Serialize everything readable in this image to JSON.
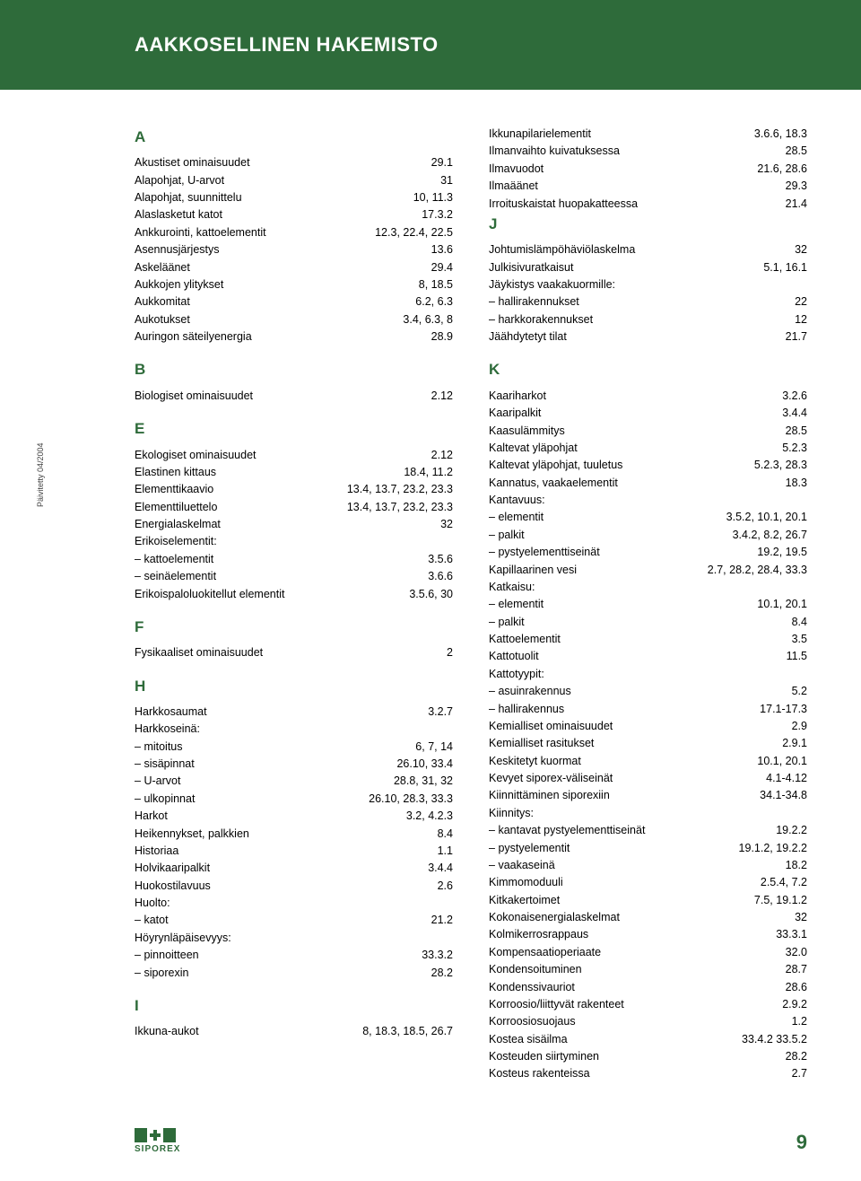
{
  "header": {
    "title": "AAKKOSELLINEN HAKEMISTO"
  },
  "sideTab": "Päivitetty 04/2004",
  "pageNumber": "9",
  "logo": "SIPOREX",
  "colors": {
    "brand": "#2e6b3a",
    "text": "#000000",
    "bg": "#ffffff"
  },
  "index": {
    "left": [
      {
        "letter": "A",
        "entries": [
          {
            "t": "Akustiset ominaisuudet",
            "r": "29.1"
          },
          {
            "t": "Alapohjat, U-arvot",
            "r": "31"
          },
          {
            "t": "Alapohjat, suunnittelu",
            "r": "10, 11.3"
          },
          {
            "t": "Alaslasketut katot",
            "r": "17.3.2"
          },
          {
            "t": "Ankkurointi, kattoelementit",
            "r": "12.3, 22.4, 22.5"
          },
          {
            "t": "Asennusjärjestys",
            "r": "13.6"
          },
          {
            "t": "Askeläänet",
            "r": "29.4"
          },
          {
            "t": "Aukkojen ylitykset",
            "r": "8, 18.5"
          },
          {
            "t": "Aukkomitat",
            "r": "6.2, 6.3"
          },
          {
            "t": "Aukotukset",
            "r": "3.4, 6.3, 8"
          },
          {
            "t": "Auringon säteilyenergia",
            "r": "28.9"
          }
        ]
      },
      {
        "letter": "B",
        "entries": [
          {
            "t": "Biologiset ominaisuudet",
            "r": "2.12"
          }
        ]
      },
      {
        "letter": "E",
        "entries": [
          {
            "t": "Ekologiset ominaisuudet",
            "r": "2.12"
          },
          {
            "t": "Elastinen kittaus",
            "r": "18.4, 11.2"
          },
          {
            "t": "Elementtikaavio",
            "r": "13.4, 13.7, 23.2, 23.3"
          },
          {
            "t": "Elementtiluettelo",
            "r": "13.4, 13.7, 23.2, 23.3"
          },
          {
            "t": "Energialaskelmat",
            "r": "32"
          },
          {
            "t": "Erikoiselementit:",
            "head": true
          },
          {
            "t": "kattoelementit",
            "r": "3.5.6",
            "sub": true
          },
          {
            "t": "seinäelementit",
            "r": "3.6.6",
            "sub": true
          },
          {
            "t": "Erikoispaloluokitellut elementit",
            "r": "3.5.6, 30"
          }
        ]
      },
      {
        "letter": "F",
        "entries": [
          {
            "t": "Fysikaaliset ominaisuudet",
            "r": "2"
          }
        ]
      },
      {
        "letter": "H",
        "entries": [
          {
            "t": "Harkkosaumat",
            "r": "3.2.7"
          },
          {
            "t": "Harkkoseinä:",
            "head": true
          },
          {
            "t": "mitoitus",
            "r": "6, 7, 14",
            "sub": true
          },
          {
            "t": "sisäpinnat",
            "r": "26.10, 33.4",
            "sub": true
          },
          {
            "t": "U-arvot",
            "r": "28.8, 31, 32",
            "sub": true
          },
          {
            "t": "ulkopinnat",
            "r": "26.10, 28.3, 33.3",
            "sub": true
          },
          {
            "t": "Harkot",
            "r": "3.2, 4.2.3"
          },
          {
            "t": "Heikennykset, palkkien",
            "r": "8.4"
          },
          {
            "t": "Historiaa",
            "r": "1.1"
          },
          {
            "t": "Holvikaaripalkit",
            "r": "3.4.4"
          },
          {
            "t": "Huokostilavuus",
            "r": "2.6"
          },
          {
            "t": "Huolto:",
            "head": true
          },
          {
            "t": "katot",
            "r": "21.2",
            "sub": true
          },
          {
            "t": "Höyrynläpäisevyys:",
            "head": true
          },
          {
            "t": "pinnoitteen",
            "r": "33.3.2",
            "sub": true
          },
          {
            "t": "siporexin",
            "r": "28.2",
            "sub": true
          }
        ]
      },
      {
        "letter": "I",
        "entries": [
          {
            "t": "Ikkuna-aukot",
            "r": "8, 18.3, 18.5, 26.7"
          }
        ]
      }
    ],
    "right": [
      {
        "continuation": true,
        "entries": [
          {
            "t": "Ikkunapilarielementit",
            "r": "3.6.6, 18.3"
          },
          {
            "t": "Ilmanvaihto kuivatuksessa",
            "r": "28.5"
          },
          {
            "t": "Ilmavuodot",
            "r": "21.6, 28.6"
          },
          {
            "t": "Ilmaäänet",
            "r": "29.3"
          },
          {
            "t": "Irroituskaistat huopakatteessa",
            "r": "21.4"
          }
        ]
      },
      {
        "letter": "J",
        "entries": [
          {
            "t": "Johtumislämpöhäviölaskelma",
            "r": "32"
          },
          {
            "t": "Julkisivuratkaisut",
            "r": "5.1, 16.1"
          },
          {
            "t": "Jäykistys vaakakuormille:",
            "head": true
          },
          {
            "t": "hallirakennukset",
            "r": "22",
            "sub": true
          },
          {
            "t": "harkkorakennukset",
            "r": "12",
            "sub": true
          },
          {
            "t": "Jäähdytetyt tilat",
            "r": "21.7"
          }
        ]
      },
      {
        "letter": "K",
        "entries": [
          {
            "t": "Kaariharkot",
            "r": "3.2.6"
          },
          {
            "t": "Kaaripalkit",
            "r": "3.4.4"
          },
          {
            "t": "Kaasulämmitys",
            "r": "28.5"
          },
          {
            "t": "Kaltevat yläpohjat",
            "r": "5.2.3"
          },
          {
            "t": "Kaltevat yläpohjat, tuuletus",
            "r": "5.2.3, 28.3"
          },
          {
            "t": "Kannatus, vaakaelementit",
            "r": "18.3"
          },
          {
            "t": "Kantavuus:",
            "head": true
          },
          {
            "t": "elementit",
            "r": "3.5.2, 10.1, 20.1",
            "sub": true
          },
          {
            "t": "palkit",
            "r": "3.4.2, 8.2, 26.7",
            "sub": true
          },
          {
            "t": "pystyelementtiseinät",
            "r": "19.2, 19.5",
            "sub": true
          },
          {
            "t": "Kapillaarinen vesi",
            "r": "2.7, 28.2, 28.4, 33.3"
          },
          {
            "t": "Katkaisu:",
            "head": true
          },
          {
            "t": "elementit",
            "r": "10.1, 20.1",
            "sub": true
          },
          {
            "t": "palkit",
            "r": "8.4",
            "sub": true
          },
          {
            "t": "Kattoelementit",
            "r": "3.5"
          },
          {
            "t": "Kattotuolit",
            "r": "11.5"
          },
          {
            "t": "Kattotyypit:",
            "head": true
          },
          {
            "t": "asuinrakennus",
            "r": "5.2",
            "sub": true
          },
          {
            "t": "hallirakennus",
            "r": "17.1-17.3",
            "sub": true
          },
          {
            "t": "Kemialliset ominaisuudet",
            "r": "2.9"
          },
          {
            "t": "Kemialliset rasitukset",
            "r": "2.9.1"
          },
          {
            "t": "Keskitetyt kuormat",
            "r": "10.1, 20.1"
          },
          {
            "t": "Kevyet siporex-väliseinät",
            "r": "4.1-4.12"
          },
          {
            "t": "Kiinnittäminen siporexiin",
            "r": "34.1-34.8"
          },
          {
            "t": "Kiinnitys:",
            "head": true
          },
          {
            "t": "kantavat pystyelementtiseinät",
            "r": "19.2.2",
            "sub": true
          },
          {
            "t": "pystyelementit",
            "r": "19.1.2, 19.2.2",
            "sub": true
          },
          {
            "t": "vaakaseinä",
            "r": "18.2",
            "sub": true
          },
          {
            "t": "Kimmomoduuli",
            "r": "2.5.4, 7.2"
          },
          {
            "t": "Kitkakertoimet",
            "r": "7.5, 19.1.2"
          },
          {
            "t": "Kokonaisenergialaskelmat",
            "r": "32"
          },
          {
            "t": "Kolmikerrosrappaus",
            "r": "33.3.1"
          },
          {
            "t": "Kompensaatioperiaate",
            "r": "32.0"
          },
          {
            "t": "Kondensoituminen",
            "r": "28.7"
          },
          {
            "t": "Kondenssivauriot",
            "r": "28.6"
          },
          {
            "t": "Korroosio/liittyvät rakenteet",
            "r": "2.9.2"
          },
          {
            "t": "Korroosiosuojaus",
            "r": "1.2"
          },
          {
            "t": "Kostea sisäilma",
            "r": "33.4.2 33.5.2"
          },
          {
            "t": "Kosteuden siirtyminen",
            "r": "28.2"
          },
          {
            "t": "Kosteus rakenteissa",
            "r": "2.7"
          }
        ]
      }
    ]
  }
}
